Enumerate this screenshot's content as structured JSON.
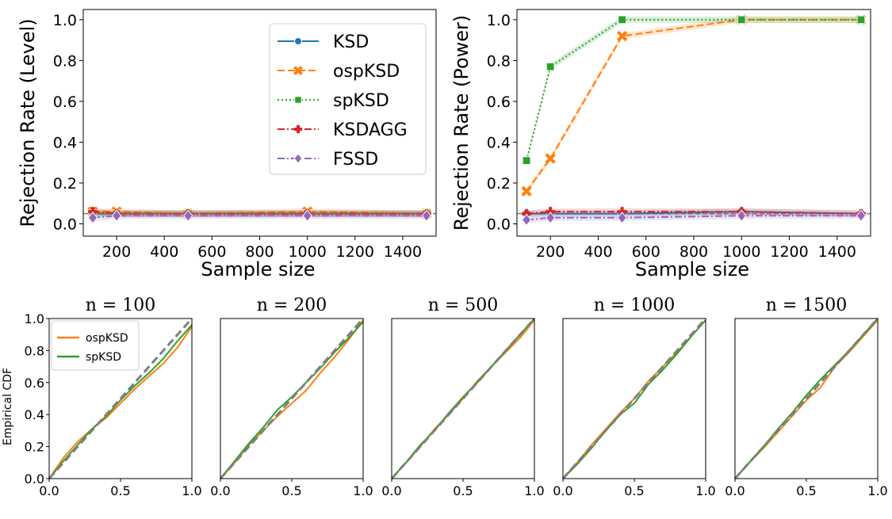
{
  "chart_data": [
    {
      "type": "line",
      "ylabel": "Rejection Rate (Level)",
      "xlabel": "Sample size",
      "xlim": [
        60,
        1540
      ],
      "ylim": [
        -0.06,
        1.05
      ],
      "xticks": [
        200,
        400,
        600,
        800,
        1000,
        1200,
        1400
      ],
      "yticks": [
        0.0,
        0.2,
        0.4,
        0.6,
        0.8,
        1.0
      ],
      "reference_line": 0.05,
      "legend_position": "top-right",
      "x": [
        100,
        200,
        500,
        1000,
        1500
      ],
      "series": [
        {
          "name": "KSD",
          "color": "#1f77b4",
          "marker": "circle",
          "dash": "solid",
          "values": [
            0.05,
            0.05,
            0.05,
            0.05,
            0.05
          ]
        },
        {
          "name": "ospKSD",
          "color": "#ff7f0e",
          "marker": "x",
          "dash": "dashed",
          "values": [
            0.06,
            0.06,
            0.05,
            0.06,
            0.05
          ]
        },
        {
          "name": "spKSD",
          "color": "#2ca02c",
          "marker": "square",
          "dash": "dotted",
          "values": [
            0.05,
            0.05,
            0.05,
            0.05,
            0.05
          ]
        },
        {
          "name": "KSDAGG",
          "color": "#d62728",
          "marker": "plus",
          "dash": "dashdot",
          "values": [
            0.06,
            0.05,
            0.05,
            0.05,
            0.05
          ]
        },
        {
          "name": "FSSD",
          "color": "#9467bd",
          "marker": "diamond",
          "dash": "dashdot",
          "values": [
            0.03,
            0.04,
            0.04,
            0.04,
            0.04
          ]
        }
      ]
    },
    {
      "type": "line",
      "ylabel": "Rejection Rate (Power)",
      "xlabel": "Sample size",
      "xlim": [
        60,
        1540
      ],
      "ylim": [
        -0.06,
        1.05
      ],
      "xticks": [
        200,
        400,
        600,
        800,
        1000,
        1200,
        1400
      ],
      "yticks": [
        0.0,
        0.2,
        0.4,
        0.6,
        0.8,
        1.0
      ],
      "reference_line": 0.05,
      "x": [
        100,
        200,
        500,
        1000,
        1500
      ],
      "series": [
        {
          "name": "KSD",
          "color": "#1f77b4",
          "marker": "circle",
          "dash": "solid",
          "values": [
            0.05,
            0.05,
            0.05,
            0.06,
            0.05
          ]
        },
        {
          "name": "ospKSD",
          "color": "#ff7f0e",
          "marker": "x",
          "dash": "dashed",
          "values": [
            0.16,
            0.32,
            0.92,
            1.0,
            1.0
          ]
        },
        {
          "name": "spKSD",
          "color": "#2ca02c",
          "marker": "square",
          "dash": "dotted",
          "values": [
            0.31,
            0.77,
            1.0,
            1.0,
            1.0
          ]
        },
        {
          "name": "KSDAGG",
          "color": "#d62728",
          "marker": "plus",
          "dash": "dashdot",
          "values": [
            0.05,
            0.06,
            0.06,
            0.06,
            0.05
          ]
        },
        {
          "name": "FSSD",
          "color": "#9467bd",
          "marker": "diamond",
          "dash": "dashdot",
          "values": [
            0.02,
            0.03,
            0.03,
            0.04,
            0.04
          ]
        }
      ]
    }
  ],
  "ecdf": {
    "ylabel": "Empirical CDF",
    "xticks": [
      "0.0",
      "0.5",
      "1.0"
    ],
    "yticks": [
      "0.0",
      "0.2",
      "0.4",
      "0.6",
      "0.8",
      "1.0"
    ],
    "legend": [
      {
        "name": "ospKSD",
        "color": "#ff7f0e"
      },
      {
        "name": "spKSD",
        "color": "#2ca02c"
      }
    ],
    "reference_color": "#7f7f7f",
    "panels": [
      {
        "title": "n = 100",
        "ospKSD": [
          [
            0,
            0
          ],
          [
            0.1,
            0.13
          ],
          [
            0.2,
            0.23
          ],
          [
            0.3,
            0.31
          ],
          [
            0.4,
            0.38
          ],
          [
            0.5,
            0.47
          ],
          [
            0.6,
            0.56
          ],
          [
            0.7,
            0.64
          ],
          [
            0.8,
            0.72
          ],
          [
            0.9,
            0.82
          ],
          [
            1,
            0.95
          ]
        ],
        "spKSD": [
          [
            0,
            0
          ],
          [
            0.1,
            0.11
          ],
          [
            0.2,
            0.21
          ],
          [
            0.3,
            0.31
          ],
          [
            0.4,
            0.39
          ],
          [
            0.5,
            0.49
          ],
          [
            0.6,
            0.58
          ],
          [
            0.7,
            0.66
          ],
          [
            0.8,
            0.75
          ],
          [
            0.9,
            0.86
          ],
          [
            1,
            0.96
          ]
        ]
      },
      {
        "title": "n = 200",
        "ospKSD": [
          [
            0,
            0
          ],
          [
            0.1,
            0.1
          ],
          [
            0.2,
            0.21
          ],
          [
            0.3,
            0.3
          ],
          [
            0.4,
            0.39
          ],
          [
            0.5,
            0.47
          ],
          [
            0.6,
            0.55
          ],
          [
            0.7,
            0.66
          ],
          [
            0.8,
            0.76
          ],
          [
            0.9,
            0.87
          ],
          [
            1,
            0.99
          ]
        ],
        "spKSD": [
          [
            0,
            0
          ],
          [
            0.1,
            0.11
          ],
          [
            0.2,
            0.22
          ],
          [
            0.3,
            0.32
          ],
          [
            0.4,
            0.43
          ],
          [
            0.5,
            0.51
          ],
          [
            0.6,
            0.6
          ],
          [
            0.7,
            0.69
          ],
          [
            0.8,
            0.79
          ],
          [
            0.9,
            0.88
          ],
          [
            1,
            0.98
          ]
        ]
      },
      {
        "title": "n = 500",
        "ospKSD": [
          [
            0,
            0
          ],
          [
            0.1,
            0.1
          ],
          [
            0.2,
            0.2
          ],
          [
            0.3,
            0.31
          ],
          [
            0.4,
            0.4
          ],
          [
            0.5,
            0.5
          ],
          [
            0.6,
            0.61
          ],
          [
            0.7,
            0.7
          ],
          [
            0.8,
            0.79
          ],
          [
            0.9,
            0.88
          ],
          [
            1,
            0.99
          ]
        ],
        "spKSD": [
          [
            0,
            0
          ],
          [
            0.1,
            0.1
          ],
          [
            0.2,
            0.21
          ],
          [
            0.3,
            0.3
          ],
          [
            0.4,
            0.41
          ],
          [
            0.5,
            0.51
          ],
          [
            0.6,
            0.6
          ],
          [
            0.7,
            0.7
          ],
          [
            0.8,
            0.8
          ],
          [
            0.9,
            0.9
          ],
          [
            1,
            1
          ]
        ]
      },
      {
        "title": "n = 1000",
        "ospKSD": [
          [
            0,
            0
          ],
          [
            0.1,
            0.1
          ],
          [
            0.2,
            0.21
          ],
          [
            0.3,
            0.31
          ],
          [
            0.4,
            0.41
          ],
          [
            0.5,
            0.5
          ],
          [
            0.6,
            0.61
          ],
          [
            0.7,
            0.7
          ],
          [
            0.8,
            0.79
          ],
          [
            0.9,
            0.89
          ],
          [
            1,
            0.99
          ]
        ],
        "spKSD": [
          [
            0,
            0
          ],
          [
            0.1,
            0.09
          ],
          [
            0.2,
            0.19
          ],
          [
            0.3,
            0.3
          ],
          [
            0.4,
            0.4
          ],
          [
            0.5,
            0.47
          ],
          [
            0.6,
            0.59
          ],
          [
            0.7,
            0.68
          ],
          [
            0.8,
            0.78
          ],
          [
            0.9,
            0.89
          ],
          [
            1,
            0.99
          ]
        ]
      },
      {
        "title": "n = 1500",
        "ospKSD": [
          [
            0,
            0
          ],
          [
            0.1,
            0.1
          ],
          [
            0.2,
            0.19
          ],
          [
            0.3,
            0.29
          ],
          [
            0.4,
            0.39
          ],
          [
            0.5,
            0.49
          ],
          [
            0.6,
            0.57
          ],
          [
            0.7,
            0.7
          ],
          [
            0.8,
            0.79
          ],
          [
            0.9,
            0.89
          ],
          [
            1,
            0.99
          ]
        ],
        "spKSD": [
          [
            0,
            0
          ],
          [
            0.1,
            0.1
          ],
          [
            0.2,
            0.2
          ],
          [
            0.3,
            0.31
          ],
          [
            0.4,
            0.41
          ],
          [
            0.5,
            0.52
          ],
          [
            0.6,
            0.62
          ],
          [
            0.7,
            0.71
          ],
          [
            0.8,
            0.8
          ],
          [
            0.9,
            0.9
          ],
          [
            1,
            1
          ]
        ]
      }
    ]
  }
}
